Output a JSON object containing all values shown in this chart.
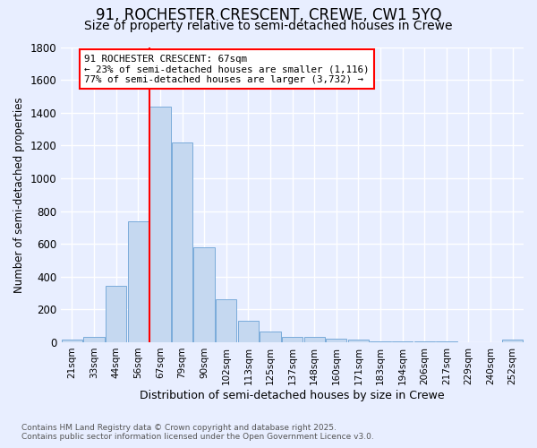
{
  "title": "91, ROCHESTER CRESCENT, CREWE, CW1 5YQ",
  "subtitle": "Size of property relative to semi-detached houses in Crewe",
  "xlabel": "Distribution of semi-detached houses by size in Crewe",
  "ylabel": "Number of semi-detached properties",
  "footnote1": "Contains HM Land Registry data © Crown copyright and database right 2025.",
  "footnote2": "Contains public sector information licensed under the Open Government Licence v3.0.",
  "categories": [
    "21sqm",
    "33sqm",
    "44sqm",
    "56sqm",
    "67sqm",
    "79sqm",
    "90sqm",
    "102sqm",
    "113sqm",
    "125sqm",
    "137sqm",
    "148sqm",
    "160sqm",
    "171sqm",
    "183sqm",
    "194sqm",
    "206sqm",
    "217sqm",
    "229sqm",
    "240sqm",
    "252sqm"
  ],
  "values": [
    15,
    30,
    345,
    740,
    1435,
    1220,
    580,
    260,
    130,
    65,
    35,
    30,
    20,
    15,
    5,
    5,
    5,
    5,
    2,
    2,
    15
  ],
  "bar_color": "#c5d8f0",
  "bar_edge_color": "#7aabda",
  "subject_bar_index": 4,
  "subject_line_color": "red",
  "annotation_line1": "91 ROCHESTER CRESCENT: 67sqm",
  "annotation_line2": "← 23% of semi-detached houses are smaller (1,116)",
  "annotation_line3": "77% of semi-detached houses are larger (3,732) →",
  "annotation_box_color": "white",
  "annotation_box_edge_color": "red",
  "ylim": [
    0,
    1800
  ],
  "background_color": "#e8eeff",
  "grid_color": "white",
  "title_fontsize": 12,
  "subtitle_fontsize": 10,
  "footnote_color": "#555555"
}
